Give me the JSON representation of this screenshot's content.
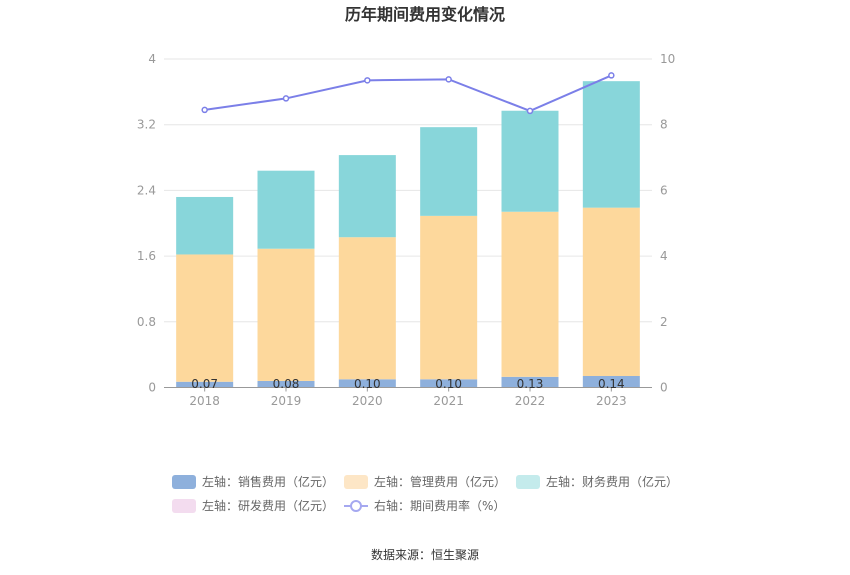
{
  "chart_data": {
    "type": "bar",
    "title": "历年期间费用变化情况",
    "categories": [
      "2018",
      "2019",
      "2020",
      "2021",
      "2022",
      "2023"
    ],
    "y_left": {
      "ticks": [
        "0",
        "0.8",
        "1.6",
        "2.4",
        "3.2",
        "4"
      ],
      "ylim": [
        0,
        4
      ]
    },
    "y_right": {
      "ticks": [
        "0",
        "2",
        "4",
        "6",
        "8",
        "10"
      ],
      "ylim": [
        0,
        10
      ]
    },
    "series": [
      {
        "name": "左轴：销售费用（亿元）",
        "kind": "bar",
        "axis": "left",
        "color": "#8eb0dc",
        "values": [
          0.07,
          0.08,
          0.1,
          0.1,
          0.13,
          0.14
        ],
        "labels": [
          "0.07",
          "0.08",
          "0.10",
          "0.10",
          "0.13",
          "0.14"
        ]
      },
      {
        "name": "左轴：管理费用（亿元）",
        "kind": "bar",
        "axis": "left",
        "color": "#fdd89c",
        "values": [
          1.55,
          1.61,
          1.73,
          1.99,
          2.01,
          2.05
        ]
      },
      {
        "name": "左轴：财务费用（亿元）",
        "kind": "bar",
        "axis": "left",
        "color": "#88d6da",
        "values": [
          0.7,
          0.95,
          1.0,
          1.08,
          1.23,
          1.54
        ]
      },
      {
        "name": "左轴：研发费用（亿元）",
        "kind": "bar",
        "axis": "left",
        "color": "#f3dcef",
        "values": [
          0,
          0,
          0,
          0,
          0,
          0
        ]
      },
      {
        "name": "右轴：期间费用率（%）",
        "kind": "line",
        "axis": "right",
        "color": "#7b7fe8",
        "values": [
          8.45,
          8.8,
          9.35,
          9.38,
          8.42,
          9.5
        ]
      }
    ],
    "grid": true,
    "legend_position": "bottom",
    "legend_swatch_colors": [
      "#8eb0dc",
      "#fde6c6",
      "#c4ebec",
      "#f3dcef",
      "#a5a8f0"
    ]
  },
  "source": "数据来源：恒生聚源"
}
